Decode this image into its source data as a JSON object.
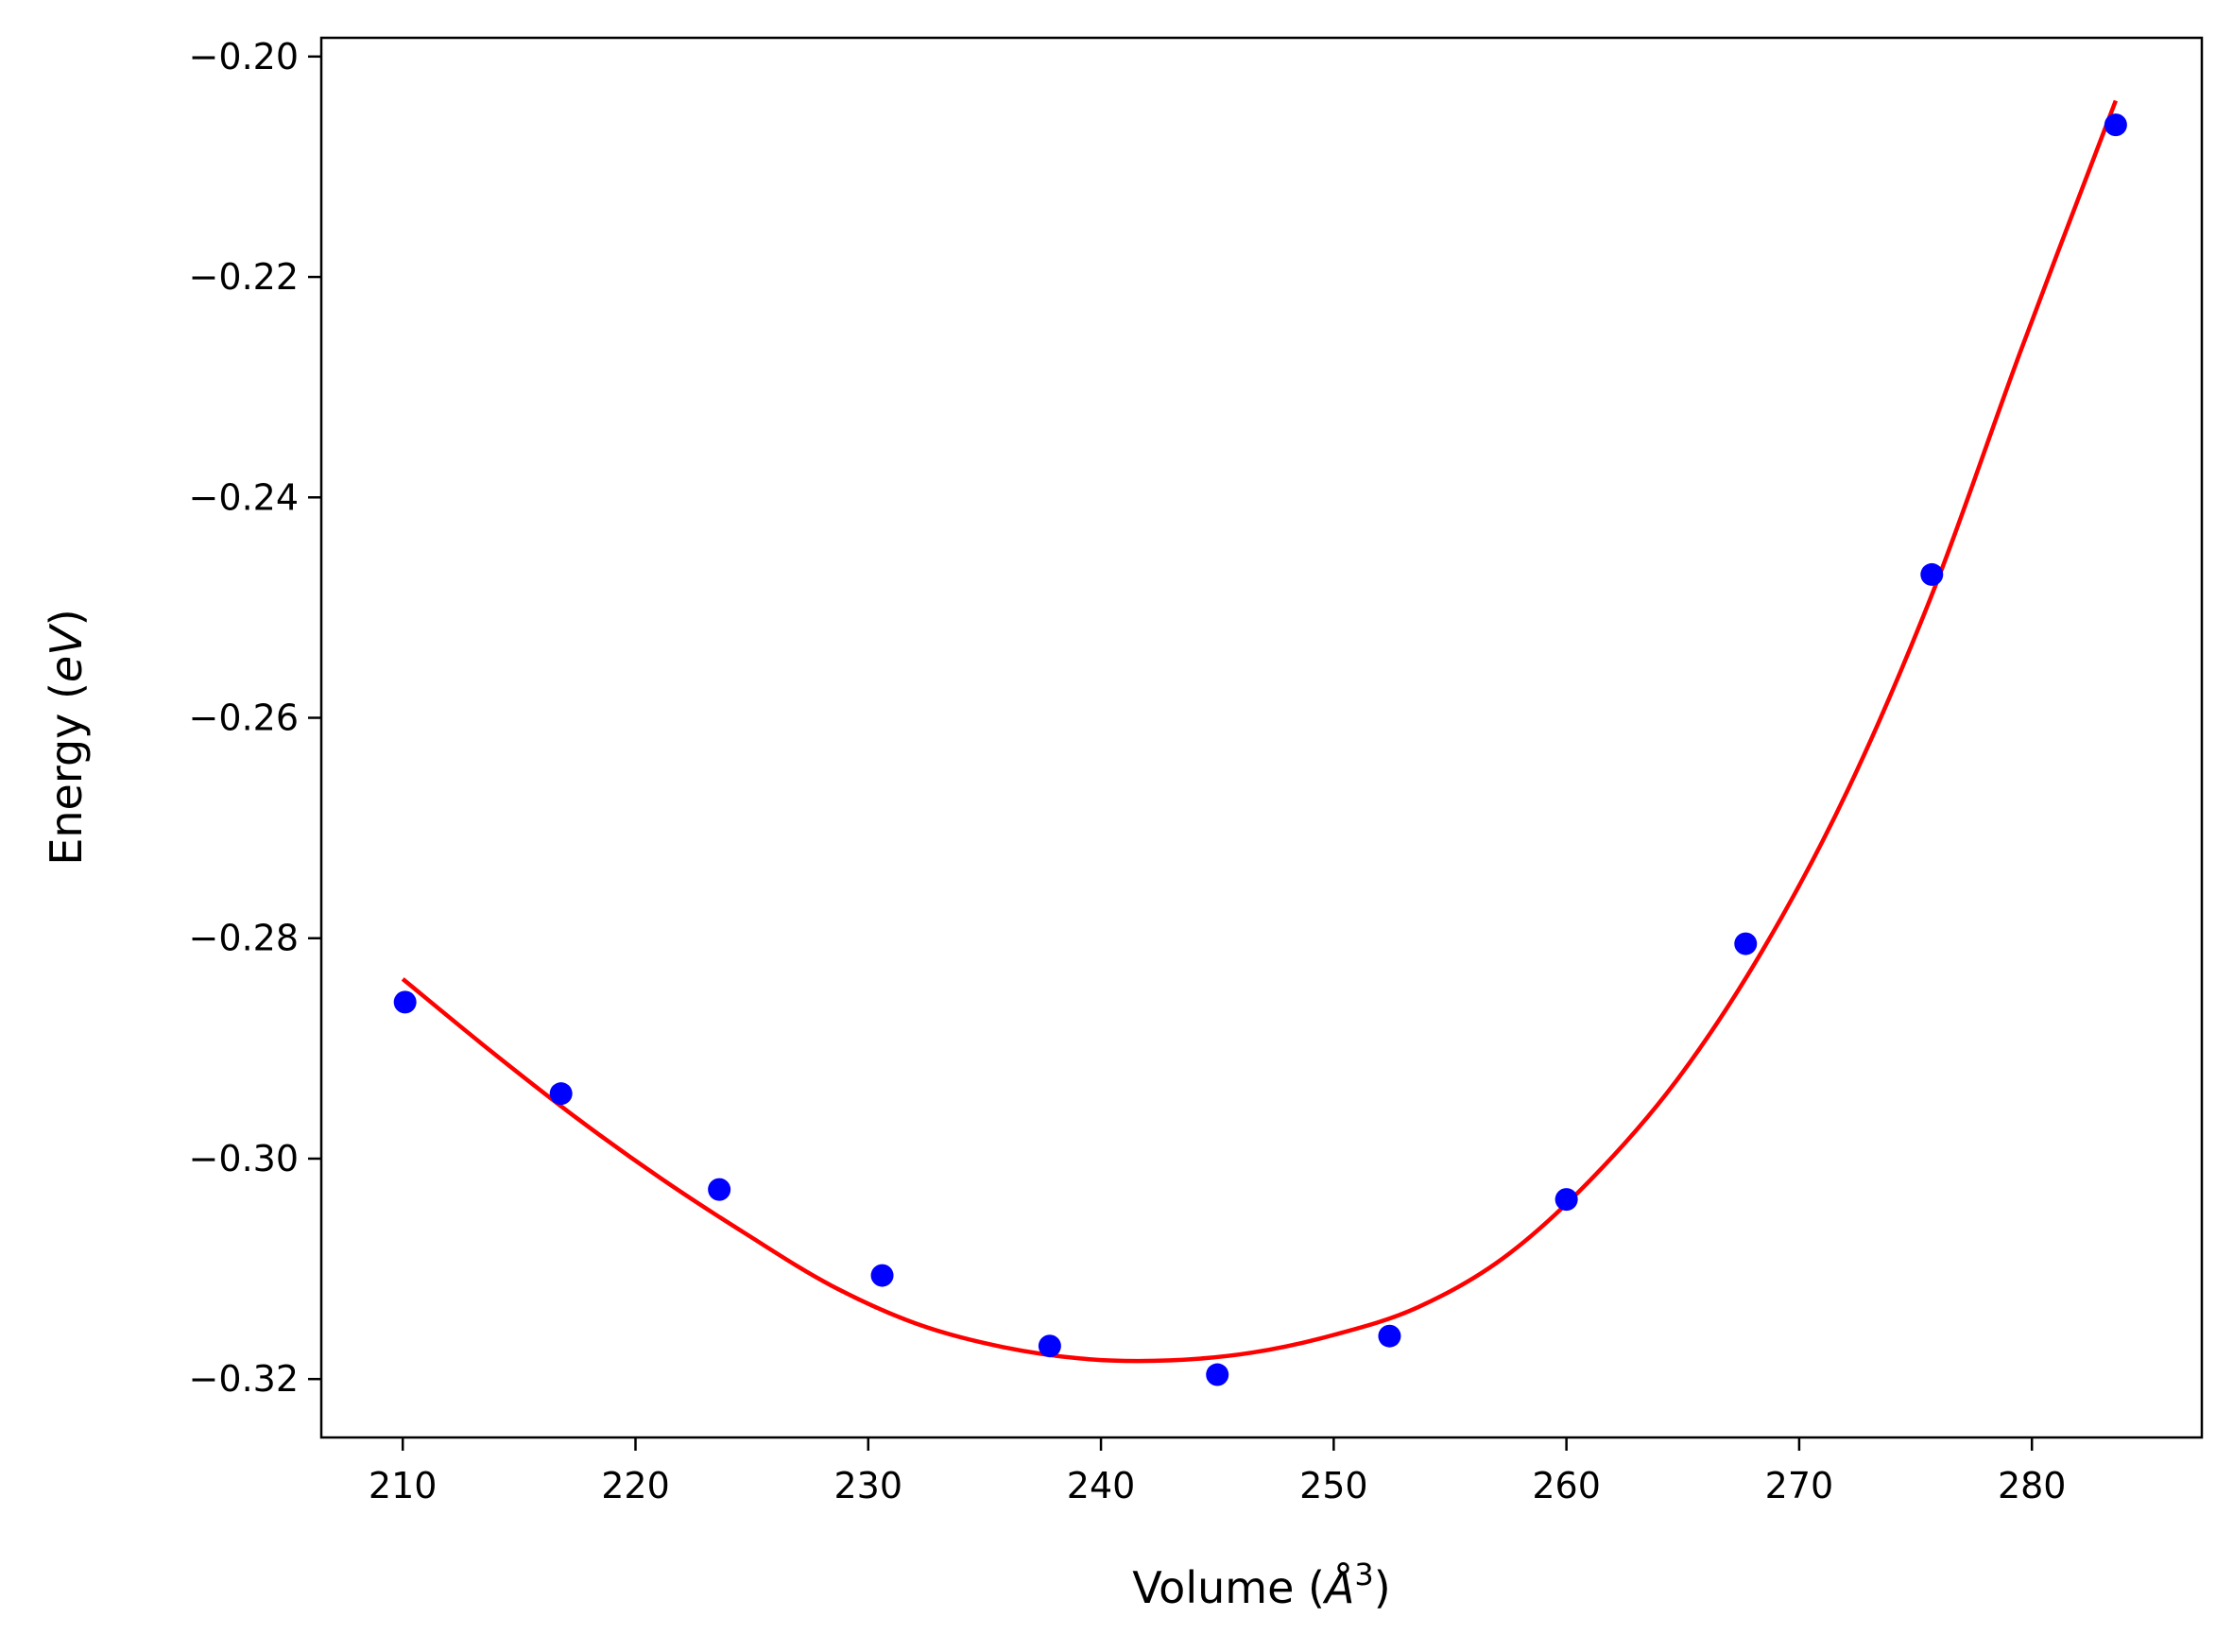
{
  "chart_data": {
    "type": "scatter",
    "title": "",
    "xlabel": {
      "prefix": "Volume (",
      "symbol": "Å",
      "sup": "3",
      "suffix": ")"
    },
    "ylabel": {
      "prefix": "Energy (",
      "symbol": "eV",
      "suffix": ")"
    },
    "xlim": [
      206.5,
      287.3
    ],
    "ylim": [
      -0.3253,
      -0.1983
    ],
    "xticks": [
      {
        "value": 210,
        "label": "210"
      },
      {
        "value": 220,
        "label": "220"
      },
      {
        "value": 230,
        "label": "230"
      },
      {
        "value": 240,
        "label": "240"
      },
      {
        "value": 250,
        "label": "250"
      },
      {
        "value": 260,
        "label": "260"
      },
      {
        "value": 270,
        "label": "270"
      },
      {
        "value": 280,
        "label": "280"
      }
    ],
    "yticks": [
      {
        "value": -0.2,
        "label": "−0.20"
      },
      {
        "value": -0.22,
        "label": "−0.22"
      },
      {
        "value": -0.24,
        "label": "−0.24"
      },
      {
        "value": -0.26,
        "label": "−0.26"
      },
      {
        "value": -0.28,
        "label": "−0.28"
      },
      {
        "value": -0.3,
        "label": "−0.30"
      },
      {
        "value": -0.32,
        "label": "−0.32"
      }
    ],
    "grid": false,
    "legend": null,
    "series": [
      {
        "kind": "points",
        "color": "#0000ff",
        "x": [
          210.1,
          216.8,
          223.6,
          230.6,
          237.8,
          245.0,
          252.4,
          260.0,
          267.7,
          275.7,
          283.6
        ],
        "y": [
          -0.2858,
          -0.2941,
          -0.3028,
          -0.3106,
          -0.317,
          -0.3196,
          -0.3161,
          -0.3037,
          -0.2805,
          -0.247,
          -0.2062
        ]
      },
      {
        "kind": "fit-line",
        "color": "#ff0000",
        "x": [
          210.0,
          213.7,
          217.4,
          221.1,
          224.8,
          228.4,
          232.1,
          235.8,
          239.5,
          243.0,
          246.5,
          250.0,
          253.6,
          257.3,
          261.0,
          264.7,
          268.4,
          272.1,
          275.8,
          279.5,
          283.6
        ],
        "y": [
          -0.2837,
          -0.2901,
          -0.2962,
          -0.3018,
          -0.3069,
          -0.3115,
          -0.315,
          -0.3171,
          -0.3182,
          -0.3183,
          -0.3176,
          -0.316,
          -0.3135,
          -0.309,
          -0.302,
          -0.293,
          -0.2812,
          -0.2665,
          -0.2483,
          -0.2268,
          -0.204
        ]
      }
    ]
  }
}
